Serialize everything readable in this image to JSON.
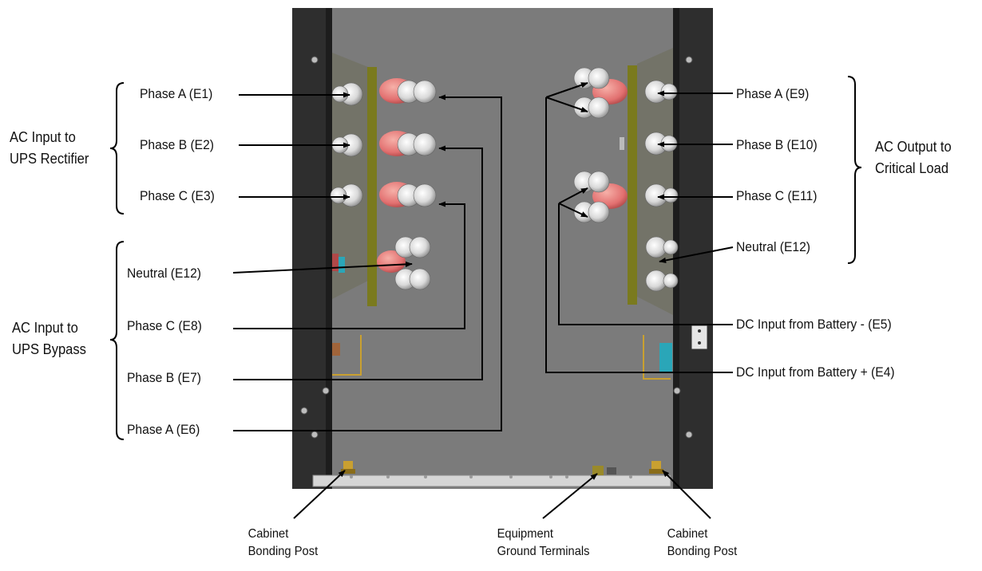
{
  "left_terminals": {
    "phase_a_e1": "Phase A (E1)",
    "phase_b_e2": "Phase B (E2)",
    "phase_c_e3": "Phase C (E3)",
    "neutral_e12": "Neutral (E12)",
    "phase_c_e8": "Phase C (E8)",
    "phase_b_e7": "Phase B (E7)",
    "phase_a_e6": "Phase A (E6)"
  },
  "right_terminals": {
    "phase_a_e9": "Phase A (E9)",
    "phase_b_e10": "Phase B (E10)",
    "phase_c_e11": "Phase C (E11)",
    "neutral_e12": "Neutral (E12)",
    "dc_negative_e5": "DC Input from Battery - (E5)",
    "dc_positive_e4": "DC Input from Battery + (E4)"
  },
  "groups": {
    "rectifier_line1": "AC Input to",
    "rectifier_line2": "UPS Rectifier",
    "bypass_line1": "AC Input to",
    "bypass_line2": "UPS Bypass",
    "output_line1": "AC Output to",
    "output_line2": "Critical Load"
  },
  "bottom": {
    "bonding_left_line1": "Cabinet",
    "bonding_left_line2": "Bonding Post",
    "ground_line1": "Equipment",
    "ground_line2": "Ground Terminals",
    "bonding_right_line1": "Cabinet",
    "bonding_right_line2": "Bonding Post"
  },
  "colors": {
    "cabinet_back": "#7b7b7b",
    "cabinet_side": "#2f2f2f",
    "busbar": "#7a7a1e",
    "insulator": "#e47878",
    "battery_terminal": "#2aa6b8"
  }
}
